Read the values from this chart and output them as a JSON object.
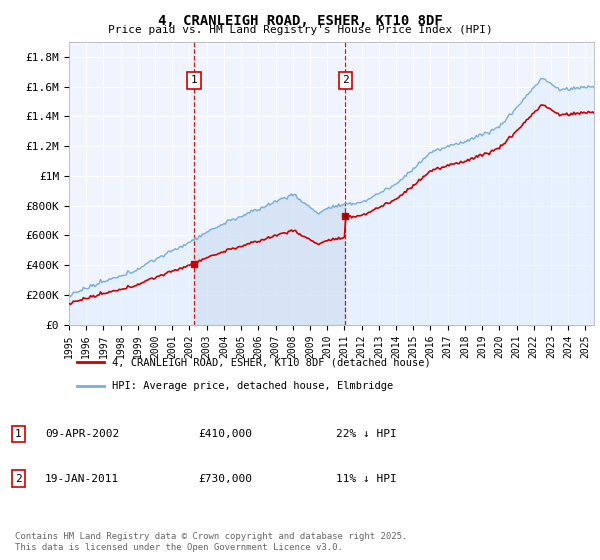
{
  "title": "4, CRANLEIGH ROAD, ESHER, KT10 8DF",
  "subtitle": "Price paid vs. HM Land Registry's House Price Index (HPI)",
  "ylabel_ticks": [
    "£0",
    "£200K",
    "£400K",
    "£600K",
    "£800K",
    "£1M",
    "£1.2M",
    "£1.4M",
    "£1.6M",
    "£1.8M"
  ],
  "ytick_values": [
    0,
    200000,
    400000,
    600000,
    800000,
    1000000,
    1200000,
    1400000,
    1600000,
    1800000
  ],
  "ylim": [
    0,
    1900000
  ],
  "xlim_start": 1995.0,
  "xlim_end": 2025.5,
  "xtick_years": [
    1995,
    1996,
    1997,
    1998,
    1999,
    2000,
    2001,
    2002,
    2003,
    2004,
    2005,
    2006,
    2007,
    2008,
    2009,
    2010,
    2011,
    2012,
    2013,
    2014,
    2015,
    2016,
    2017,
    2018,
    2019,
    2020,
    2021,
    2022,
    2023,
    2024,
    2025
  ],
  "sale1_x": 2002.27,
  "sale1_y": 410000,
  "sale1_label": "1",
  "sale1_date": "09-APR-2002",
  "sale1_price": "£410,000",
  "sale1_hpi": "22% ↓ HPI",
  "sale2_x": 2011.05,
  "sale2_y": 730000,
  "sale2_label": "2",
  "sale2_date": "19-JAN-2011",
  "sale2_price": "£730,000",
  "sale2_hpi": "11% ↓ HPI",
  "line_color_sale": "#cc0000",
  "line_color_hpi": "#7aaed6",
  "fill_color_hpi": "#ddeeff",
  "fill_between_sales": "#ccddf0",
  "vline_color": "#cc0000",
  "background_color": "#ffffff",
  "plot_bg_color": "#f0f4ff",
  "legend_label_sale": "4, CRANLEIGH ROAD, ESHER, KT10 8DF (detached house)",
  "legend_label_hpi": "HPI: Average price, detached house, Elmbridge",
  "footer": "Contains HM Land Registry data © Crown copyright and database right 2025.\nThis data is licensed under the Open Government Licence v3.0."
}
